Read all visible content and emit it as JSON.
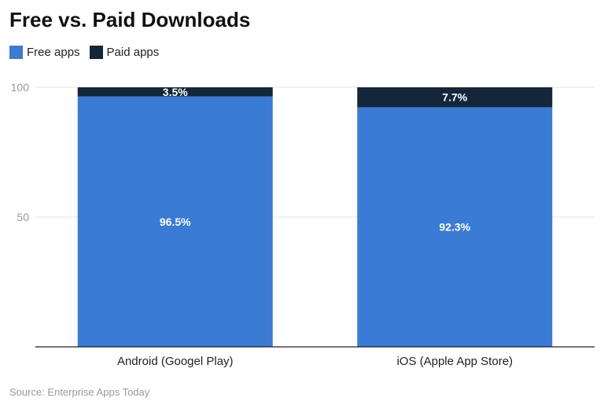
{
  "chart_data": {
    "type": "bar",
    "stacked": true,
    "title": "Free vs. Paid Downloads",
    "categories": [
      "Android (Googel Play)",
      "iOS (Apple App Store)"
    ],
    "series": [
      {
        "name": "Free apps",
        "values": [
          96.5,
          92.3
        ],
        "labels": [
          "96.5%",
          "92.3%"
        ],
        "color": "#3a7bd5"
      },
      {
        "name": "Paid apps",
        "values": [
          3.5,
          7.7
        ],
        "labels": [
          "3.5%",
          "7.7%"
        ],
        "color": "#13263a"
      }
    ],
    "yticks": [
      "50",
      "100"
    ],
    "ylim": [
      0,
      100
    ],
    "grid": true,
    "legend_position": "top-left"
  },
  "source": "Source: Enterprise Apps Today"
}
